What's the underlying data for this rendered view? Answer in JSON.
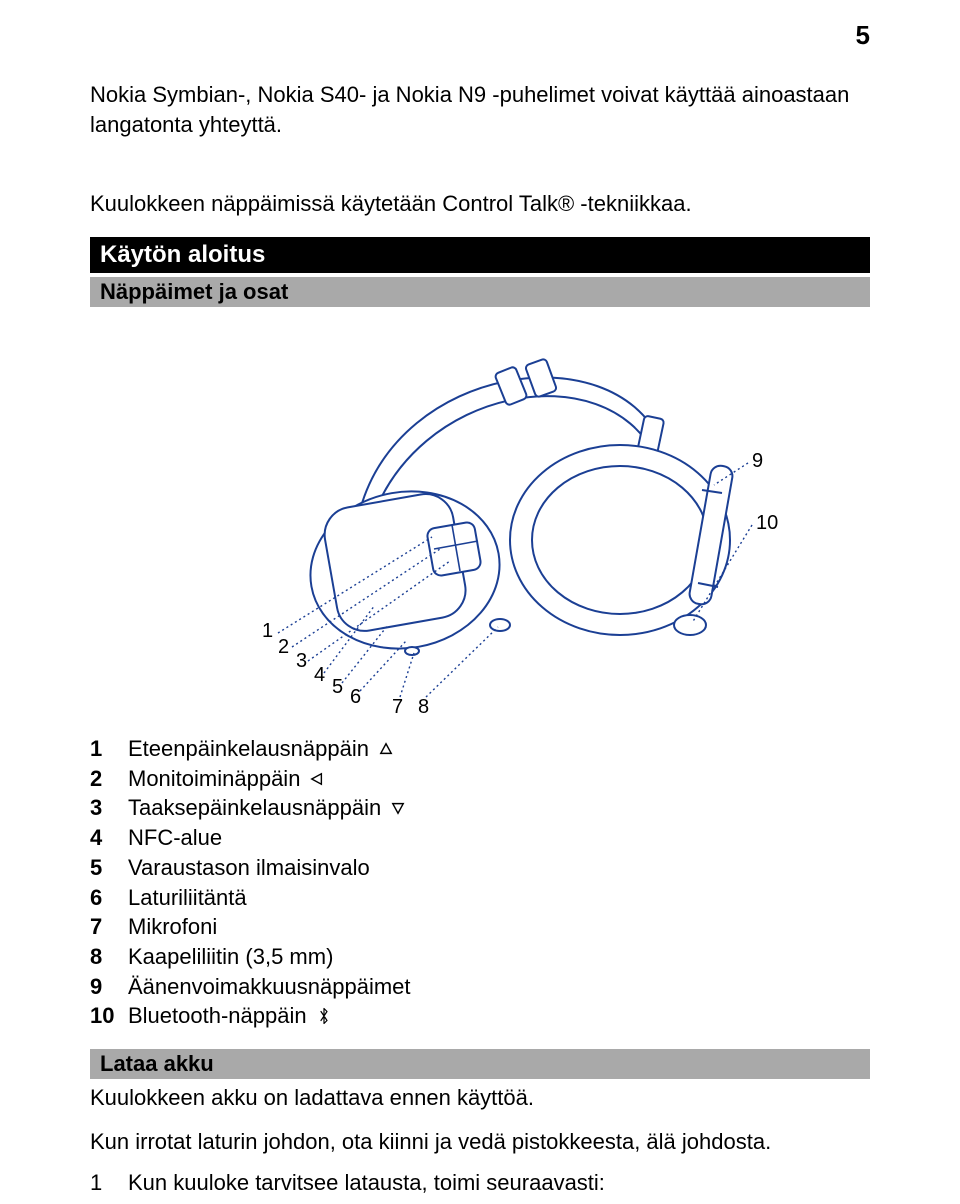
{
  "page_number": "5",
  "intro_paragraph_1": "Nokia Symbian-, Nokia S40- ja Nokia N9 -puhelimet voivat käyttää ainoastaan langatonta yhteyttä.",
  "intro_paragraph_2": "Kuulokkeen näppäimissä käytetään Control Talk® -tekniikkaa.",
  "section_title": "Käytön aloitus",
  "subsection_title": "Näppäimet ja osat",
  "diagram": {
    "stroke": "#1b3f94",
    "labels": [
      "1",
      "2",
      "3",
      "4",
      "5",
      "6",
      "7",
      "8",
      "9",
      "10"
    ]
  },
  "parts": [
    {
      "num": "1",
      "label": "Eteenpäinkelausnäppäin",
      "icon": "triangle-up"
    },
    {
      "num": "2",
      "label": "Monitoiminäppäin",
      "icon": "triangle-left"
    },
    {
      "num": "3",
      "label": "Taaksepäinkelausnäppäin",
      "icon": "triangle-down"
    },
    {
      "num": "4",
      "label": "NFC-alue",
      "icon": null
    },
    {
      "num": "5",
      "label": "Varaustason ilmaisinvalo",
      "icon": null
    },
    {
      "num": "6",
      "label": "Laturiliitäntä",
      "icon": null
    },
    {
      "num": "7",
      "label": "Mikrofoni",
      "icon": null
    },
    {
      "num": "8",
      "label": "Kaapeliliitin (3,5 mm)",
      "icon": null
    },
    {
      "num": "9",
      "label": "Äänenvoimakkuusnäppäimet",
      "icon": null
    },
    {
      "num": "10",
      "label": "Bluetooth-näppäin",
      "icon": "bluetooth"
    }
  ],
  "charge_title": "Lataa akku",
  "charge_intro": "Kuulokkeen akku on ladattava ennen käyttöä.",
  "charge_step": "Kun irrotat laturin johdon, ota kiinni ja vedä pistokkeesta, älä johdosta.",
  "charge_proc_num": "1",
  "charge_proc_text": "Kun kuuloke tarvitsee latausta, toimi seuraavasti:"
}
